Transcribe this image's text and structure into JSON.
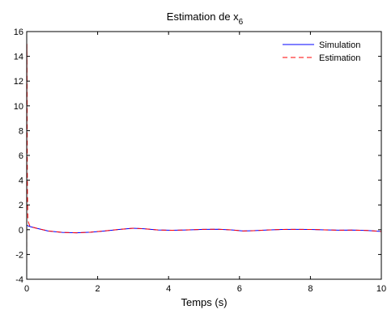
{
  "chart_data": {
    "type": "line",
    "title_main": "Estimation de x",
    "title_sub": "6",
    "xlabel": "Temps (s)",
    "ylabel": "",
    "xlim": [
      0,
      10
    ],
    "ylim": [
      -4,
      16
    ],
    "xticks": [
      0,
      2,
      4,
      6,
      8,
      10
    ],
    "yticks": [
      -4,
      -2,
      0,
      2,
      4,
      6,
      8,
      10,
      12,
      14,
      16
    ],
    "xtick_labels": [
      "0",
      "2",
      "4",
      "6",
      "8",
      "10"
    ],
    "ytick_labels": [
      "-4",
      "-2",
      "0",
      "2",
      "4",
      "6",
      "8",
      "10",
      "12",
      "14",
      "16"
    ],
    "grid": false,
    "legend_position": "top-right",
    "series": [
      {
        "name": "Simulation",
        "color": "#0000ff",
        "style": "solid",
        "x": [
          0,
          0.1,
          0.3,
          0.6,
          1.0,
          1.4,
          1.8,
          2.2,
          2.6,
          3.0,
          3.3,
          3.7,
          4.1,
          4.5,
          5.0,
          5.4,
          5.8,
          6.1,
          6.4,
          6.8,
          7.2,
          7.6,
          8.0,
          8.4,
          8.8,
          9.2,
          9.6,
          10.0
        ],
        "y": [
          0.35,
          0.25,
          0.1,
          -0.1,
          -0.22,
          -0.25,
          -0.2,
          -0.1,
          0.02,
          0.12,
          0.08,
          -0.02,
          -0.05,
          -0.02,
          0.03,
          0.04,
          -0.02,
          -0.1,
          -0.08,
          -0.02,
          0.02,
          0.03,
          0.02,
          -0.01,
          -0.04,
          -0.03,
          -0.06,
          -0.14
        ]
      },
      {
        "name": "Estimation",
        "color": "#ff0000",
        "style": "dashed",
        "x": [
          0,
          0.005,
          0.01,
          0.015,
          0.02,
          0.03,
          0.05,
          0.08,
          0.1,
          0.3,
          0.6,
          1.0,
          1.4,
          1.8,
          2.2,
          2.6,
          3.0,
          3.3,
          3.7,
          4.1,
          4.5,
          5.0,
          5.4,
          5.8,
          6.1,
          6.4,
          6.8,
          7.2,
          7.6,
          8.0,
          8.4,
          8.8,
          9.2,
          9.6,
          10.0
        ],
        "y": [
          -4,
          15,
          12,
          6,
          3,
          1.0,
          0.6,
          0.35,
          0.25,
          0.1,
          -0.1,
          -0.22,
          -0.25,
          -0.2,
          -0.1,
          0.02,
          0.12,
          0.08,
          -0.02,
          -0.05,
          -0.02,
          0.03,
          0.04,
          -0.02,
          -0.1,
          -0.08,
          -0.02,
          0.02,
          0.03,
          0.02,
          -0.01,
          -0.04,
          -0.03,
          -0.06,
          -0.14
        ]
      }
    ]
  }
}
